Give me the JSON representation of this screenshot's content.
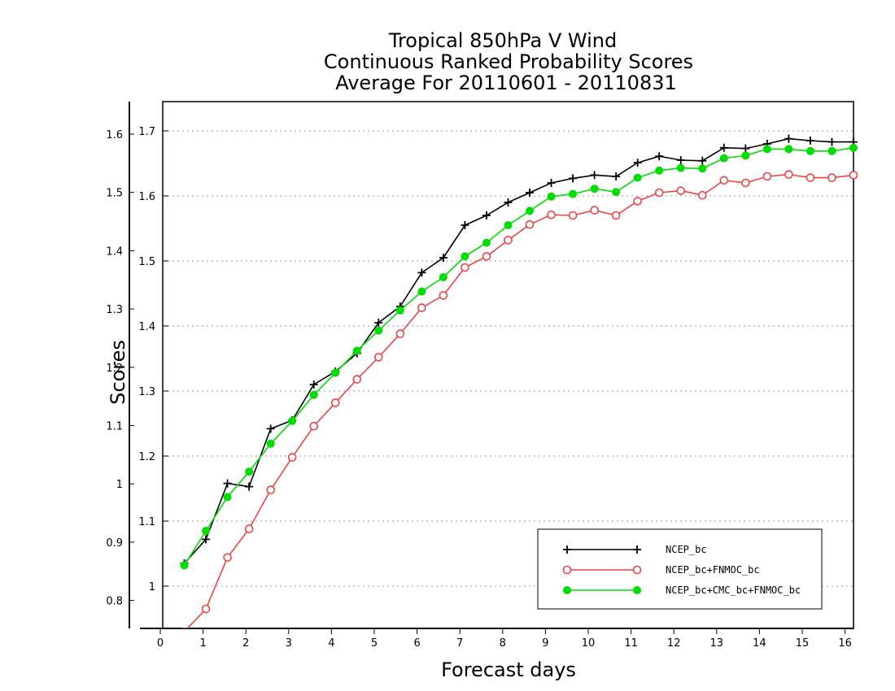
{
  "chart_data": {
    "type": "line",
    "title_lines": [
      "Tropical 850hPa V Wind",
      "Continuous Ranked Probability Scores",
      "Average For 20110601 - 20110831"
    ],
    "xlabel": "Forecast days",
    "ylabel": "Scores",
    "xlim": [
      0,
      16
    ],
    "ylim": [
      0.935,
      1.745
    ],
    "x_ticks": [
      "0",
      "1",
      "2",
      "3",
      "4",
      "5",
      "6",
      "7",
      "8",
      "9",
      "10",
      "11",
      "12",
      "13",
      "14",
      "15",
      "16"
    ],
    "y_ticks_inner": [
      {
        "v": 1.0,
        "label": "1"
      },
      {
        "v": 1.1,
        "label": "1.1"
      },
      {
        "v": 1.2,
        "label": "1.2"
      },
      {
        "v": 1.3,
        "label": "1.3"
      },
      {
        "v": 1.4,
        "label": "1.4"
      },
      {
        "v": 1.5,
        "label": "1.5"
      },
      {
        "v": 1.6,
        "label": "1.6"
      },
      {
        "v": 1.7,
        "label": "1.7"
      }
    ],
    "y_ticks_outer": [
      "0.8",
      "0.9",
      "1",
      "1.1",
      "1.2",
      "1.3",
      "1.4",
      "1.5",
      "1.6"
    ],
    "x": [
      0.5,
      1,
      1.5,
      2,
      2.5,
      3,
      3.5,
      4,
      4.5,
      5,
      5.5,
      6,
      6.5,
      7,
      7.5,
      8,
      8.5,
      9,
      9.5,
      10,
      10.5,
      11,
      11.5,
      12,
      12.5,
      13,
      13.5,
      14,
      14.5,
      15,
      15.5,
      16
    ],
    "series": [
      {
        "name": "NCEP_bc",
        "color": "#000000",
        "marker": "plus",
        "values": [
          1.035,
          1.072,
          1.158,
          1.153,
          1.242,
          1.255,
          1.31,
          1.33,
          1.358,
          1.405,
          1.43,
          1.482,
          1.505,
          1.555,
          1.57,
          1.59,
          1.605,
          1.62,
          1.627,
          1.632,
          1.63,
          1.651,
          1.661,
          1.655,
          1.654,
          1.674,
          1.673,
          1.68,
          1.688,
          1.685,
          1.683,
          1.683
        ]
      },
      {
        "name": "NCEP_bc+FNMOC_bc",
        "color": "#ee4444",
        "marker": "circle-open",
        "values": [
          0.93,
          0.965,
          1.044,
          1.088,
          1.148,
          1.198,
          1.246,
          1.282,
          1.318,
          1.352,
          1.388,
          1.428,
          1.447,
          1.49,
          1.507,
          1.532,
          1.556,
          1.571,
          1.57,
          1.578,
          1.57,
          1.592,
          1.605,
          1.608,
          1.601,
          1.624,
          1.62,
          1.63,
          1.633,
          1.628,
          1.628,
          1.632
        ]
      },
      {
        "name": "NCEP_bc+CMC_bc+FNMOC_bc",
        "color": "#00dd00",
        "marker": "circle-filled",
        "values": [
          1.032,
          1.085,
          1.137,
          1.176,
          1.219,
          1.254,
          1.294,
          1.328,
          1.362,
          1.393,
          1.424,
          1.453,
          1.475,
          1.507,
          1.528,
          1.555,
          1.577,
          1.599,
          1.603,
          1.611,
          1.606,
          1.628,
          1.639,
          1.643,
          1.642,
          1.658,
          1.662,
          1.672,
          1.672,
          1.669,
          1.669,
          1.674
        ]
      }
    ],
    "grid": true,
    "legend_position": "bottom-right"
  }
}
